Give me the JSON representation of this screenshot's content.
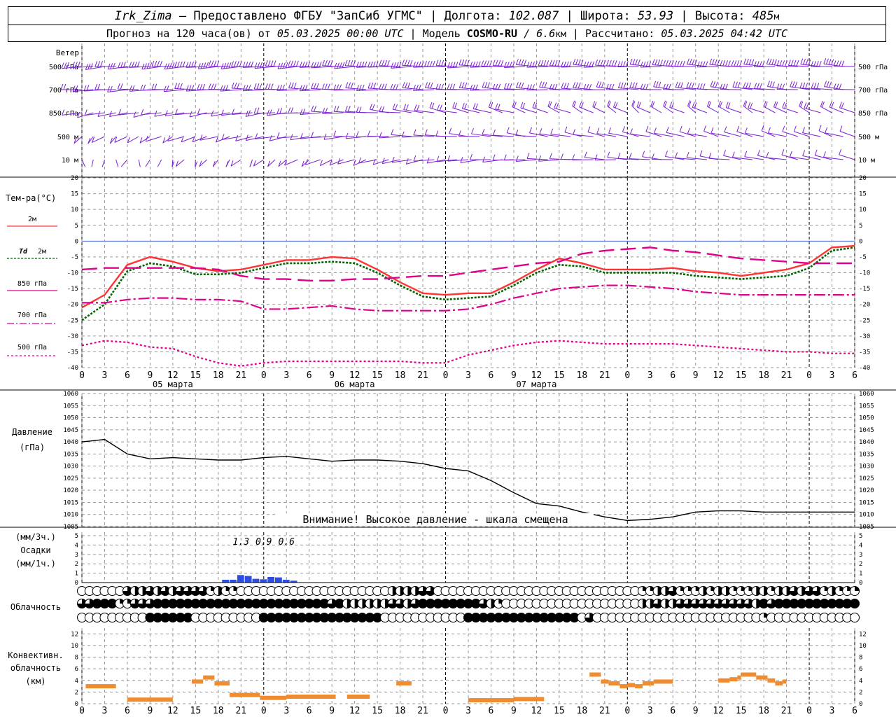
{
  "header": {
    "station": "Irk_Zima",
    "dash": " – ",
    "provided": "Предоставлено ФГБУ \"ЗапСиб УГМС\" | Долгота: ",
    "lon": "102.087",
    "lat_label": " | Широта: ",
    "lat": "53.93",
    "alt_label": " | Высота: ",
    "alt": "485",
    "alt_unit": "м",
    "fc_label": "Прогноз на 120 часа(ов) от ",
    "fc_start": "05.03.2025 00:00 UTC",
    "model_label": " | Модель ",
    "model": "COSMO-RU",
    "model_res": " / 6.6",
    "model_res_unit": "км",
    "calc_label": " | Рассчитано: ",
    "calc_time": "05.03.2025 04:42 UTC"
  },
  "colors": {
    "t2m": "#ff3333",
    "td2m": "#006400",
    "t850": "#e0008c",
    "t700": "#e0008c",
    "t500": "#e0008c",
    "pressure": "#000000",
    "precip": "#2b4de0",
    "conv": "#f08c30",
    "barb": "#7a1fd0",
    "zero_line": "#3a5fd8",
    "grid": "#aaaaaa"
  },
  "x_axis": {
    "hour_labels": [
      "0",
      "3",
      "6",
      "9",
      "12",
      "15",
      "18",
      "21",
      "0",
      "3",
      "6",
      "9",
      "12",
      "15",
      "18",
      "21",
      "0",
      "3",
      "6",
      "9",
      "12",
      "15",
      "18",
      "21",
      "0",
      "3",
      "6",
      "9",
      "12",
      "15",
      "18",
      "21",
      "0",
      "3",
      "6"
    ],
    "day_labels": [
      "05 марта",
      "06 марта",
      "07 марта"
    ]
  },
  "wind": {
    "title": "Ветер",
    "levels": [
      "500 гПа",
      "700 гПа",
      "850 гПа",
      "500 м",
      "10 м"
    ]
  },
  "temp_panel": {
    "title": "Тем-ра(°С)",
    "y_ticks": [
      "20",
      "15",
      "10",
      "5",
      "0",
      "-5",
      "-10",
      "-15",
      "-20",
      "-25",
      "-30",
      "-35",
      "-40"
    ],
    "legend": {
      "t2m": "2м",
      "td_a": "Td",
      "td_b": "2м",
      "t850": "850 гПа",
      "t700": "700 гПа",
      "t500": "500 гПа"
    }
  },
  "pressure_panel": {
    "title": "Давление",
    "unit": "(гПа)",
    "y_ticks": [
      "1060",
      "1055",
      "1050",
      "1045",
      "1040",
      "1035",
      "1030",
      "1025",
      "1020",
      "1015",
      "1010",
      "1005"
    ],
    "warning": "Внимание! Высокое давление - шкала смещена"
  },
  "precip_panel": {
    "unit3": "(мм/3ч.)",
    "title": "Осадки",
    "unit1": "(мм/1ч.)",
    "y_ticks": [
      "5",
      "4",
      "3",
      "2",
      "1",
      "0"
    ],
    "totals": [
      "1.3",
      "0.9",
      "0.6"
    ]
  },
  "cloud_panel": {
    "title": "Облачность"
  },
  "conv_panel": {
    "title1": "Конвективн.",
    "title2": "облачность",
    "unit": "(км)",
    "y_ticks": [
      "12",
      "10",
      "8",
      "6",
      "4",
      "2",
      "0"
    ]
  },
  "chart_data": [
    {
      "type": "line",
      "title": "Тем-ра(°С)",
      "x_unit": "hours since 05.03.2025 00:00 UTC",
      "ylim": [
        -40,
        20
      ],
      "x": [
        0,
        3,
        6,
        9,
        12,
        15,
        18,
        21,
        24,
        27,
        30,
        33,
        36,
        39,
        42,
        45,
        48,
        51,
        54,
        57,
        60,
        63,
        66,
        69,
        72,
        75,
        78,
        81,
        84,
        87,
        90,
        93,
        96,
        99,
        102
      ],
      "series": [
        {
          "name": "2м",
          "values": [
            -21,
            -17,
            -7.5,
            -5,
            -6.5,
            -8.5,
            -9.5,
            -9,
            -7.5,
            -6,
            -6,
            -5,
            -5.5,
            -9,
            -13,
            -16.5,
            -17,
            -16.5,
            -16.5,
            -13,
            -9,
            -5.5,
            -7,
            -9,
            -9,
            -9,
            -8.5,
            -9.5,
            -10,
            -11,
            -10,
            -9,
            -7,
            -2,
            -1.5
          ]
        },
        {
          "name": "Td 2м",
          "values": [
            -25,
            -20,
            -9.5,
            -7,
            -8,
            -10.5,
            -10.5,
            -10,
            -8.5,
            -7,
            -7,
            -6.5,
            -7,
            -10,
            -14,
            -17.5,
            -18.5,
            -18,
            -17.5,
            -14,
            -10,
            -7.5,
            -8,
            -10,
            -10,
            -10,
            -10,
            -11,
            -11.5,
            -12,
            -11.5,
            -11,
            -8.5,
            -3,
            -2
          ]
        },
        {
          "name": "850 гПа",
          "values": [
            -9,
            -8.5,
            -8.5,
            -8.5,
            -8.5,
            -8.5,
            -9,
            -11,
            -12,
            -12,
            -12.5,
            -12.5,
            -12,
            -12,
            -11.5,
            -11,
            -11,
            -10,
            -9,
            -8,
            -7,
            -6.5,
            -4,
            -3,
            -2.5,
            -2,
            -3,
            -3.5,
            -4.5,
            -5.5,
            -6,
            -6.5,
            -7,
            -7,
            -7
          ]
        },
        {
          "name": "700 гПа",
          "values": [
            -19.5,
            -19.5,
            -18.5,
            -18,
            -18,
            -18.5,
            -18.5,
            -19,
            -21.5,
            -21.5,
            -21,
            -20.5,
            -21.5,
            -22,
            -22,
            -22,
            -22,
            -21.5,
            -20,
            -18,
            -16.5,
            -15,
            -14.5,
            -14,
            -14,
            -14.5,
            -15,
            -16,
            -16.5,
            -17,
            -17,
            -17,
            -17,
            -17,
            -17
          ]
        },
        {
          "name": "500 гПа",
          "values": [
            -33,
            -31.5,
            -32,
            -33.5,
            -34,
            -36.5,
            -38.5,
            -39.5,
            -38.5,
            -38,
            -38,
            -38,
            -38,
            -38,
            -38,
            -38.5,
            -38.5,
            -36,
            -34.5,
            -33,
            -32,
            -31.5,
            -32,
            -32.5,
            -32.5,
            -32.5,
            -32.5,
            -33,
            -33.5,
            -34,
            -34.5,
            -35,
            -35,
            -35.5,
            -35.5
          ]
        }
      ]
    },
    {
      "type": "line",
      "title": "Давление",
      "x_unit": "hours since 05.03.2025 00:00 UTC",
      "ylim": [
        1005,
        1060
      ],
      "x": [
        0,
        3,
        6,
        9,
        12,
        15,
        18,
        21,
        24,
        27,
        30,
        33,
        36,
        39,
        42,
        45,
        48,
        51,
        54,
        57,
        60,
        63,
        66,
        69,
        72,
        75,
        78,
        81,
        84,
        87,
        90,
        93,
        96,
        99,
        102
      ],
      "series": [
        {
          "name": "Давление",
          "values": [
            1040,
            1041,
            1035,
            1033,
            1033.5,
            1033,
            1032.5,
            1032.5,
            1033.5,
            1034,
            1033,
            1032,
            1032.5,
            1032.5,
            1032,
            1031,
            1029,
            1028,
            1024,
            1019,
            1014.5,
            1013.5,
            1011,
            1009,
            1007.5,
            1008,
            1009,
            1011,
            1011.5,
            1011.5,
            1011,
            1011,
            1011,
            1011,
            1011
          ]
        }
      ]
    },
    {
      "type": "bar",
      "title": "Осадки",
      "x_unit": "hours since 05.03.2025 00:00 UTC",
      "ylim": [
        0,
        5
      ],
      "x": [
        19,
        20,
        21,
        22,
        23,
        24,
        25,
        26,
        27,
        28,
        29,
        30,
        31,
        32,
        33,
        34,
        35,
        36,
        37,
        38,
        39,
        40,
        41,
        42,
        43,
        44,
        45,
        46,
        47,
        48,
        49,
        50,
        51,
        52,
        53,
        54,
        55,
        56,
        57,
        58,
        59,
        60,
        61,
        62,
        63,
        64,
        65,
        66,
        67,
        68,
        69,
        70,
        71,
        72,
        73,
        74,
        75,
        76,
        77,
        78,
        79,
        80,
        81,
        82,
        83,
        84,
        85,
        86,
        87,
        88,
        89,
        90
      ],
      "values": [
        0.3,
        0.3,
        0.8,
        0.7,
        0.4,
        0.35,
        0.6,
        0.55,
        0.3,
        0.2,
        0,
        0,
        0,
        0,
        0,
        0,
        0,
        0,
        0,
        0,
        0,
        0,
        0,
        0,
        0,
        0,
        0,
        0,
        0,
        0,
        0,
        0,
        0,
        0,
        0,
        0,
        0,
        0,
        0,
        0,
        0,
        0,
        0,
        0,
        0,
        0,
        0,
        0,
        0,
        0,
        0,
        0.05,
        0,
        0,
        0,
        0,
        0,
        0,
        0,
        0,
        0,
        0,
        0,
        0,
        0,
        0,
        0,
        0,
        0,
        0,
        0,
        0
      ],
      "totals": [
        1.3,
        0.9,
        0.6
      ]
    },
    {
      "type": "table",
      "title": "Облачность",
      "x_unit": "hours since 05.03.2025 00:00 UTC",
      "x": [
        0,
        1,
        2,
        3,
        4,
        5,
        6,
        7,
        8,
        9,
        10,
        11,
        12,
        13,
        14,
        15,
        16,
        17,
        18,
        19,
        20,
        21,
        22,
        23,
        24,
        25,
        26,
        27,
        28,
        29,
        30,
        31,
        32,
        33,
        34,
        35,
        36,
        37,
        38,
        39,
        40,
        41,
        42,
        43,
        44,
        45,
        46,
        47,
        48,
        49,
        50,
        51,
        52,
        53,
        54,
        55,
        56,
        57,
        58,
        59,
        60,
        61,
        62,
        63,
        64,
        65,
        66,
        67,
        68,
        69,
        70,
        71,
        72,
        73,
        74,
        75,
        76,
        77,
        78,
        79,
        80,
        81,
        82,
        83,
        84,
        85,
        86,
        87,
        88,
        89,
        90,
        91,
        92,
        93,
        94,
        95,
        96,
        97,
        98,
        99,
        100,
        101,
        102
      ],
      "rows": [
        {
          "name": "upper",
          "values": [
            0,
            0,
            0,
            0,
            0,
            0,
            0.75,
            0.5,
            0.5,
            0.75,
            0.5,
            0.75,
            0.5,
            0.75,
            0.75,
            0.75,
            0.75,
            0.25,
            0.5,
            0.25,
            0.25,
            0,
            0,
            0,
            0,
            0,
            0,
            0,
            0,
            0,
            0,
            0,
            0,
            0,
            0,
            0,
            0,
            0,
            0,
            0,
            0,
            0.5,
            0.5,
            0.5,
            0.5,
            0.75,
            0.75,
            0,
            0,
            0,
            0,
            0,
            0,
            0,
            0,
            0,
            0,
            0,
            0,
            0,
            0,
            0,
            0,
            0,
            0,
            0,
            0,
            0,
            0,
            0,
            0,
            0,
            0,
            0,
            0.25,
            0.25,
            0.5,
            0.5,
            0.75,
            0.25,
            0.25,
            0.25,
            0.5,
            0.25,
            0.5,
            0.5,
            0.25,
            0.25,
            0.25,
            0.5,
            0.5,
            0.25,
            0.5,
            0.5,
            0.75,
            0.5,
            0.75,
            0.75,
            0.25,
            0.5,
            0.25,
            0.25,
            0.25
          ]
        },
        {
          "name": "middle",
          "values": [
            0.75,
            0.75,
            1,
            1,
            1,
            0.25,
            0.25,
            0.75,
            0.75,
            0.75,
            1,
            1,
            1,
            1,
            1,
            1,
            1,
            1,
            1,
            1,
            1,
            1,
            1,
            1,
            1,
            1,
            1,
            1,
            1,
            1,
            1,
            1,
            1,
            0.75,
            1,
            0.5,
            0.5,
            0.5,
            0.5,
            0.5,
            0.5,
            0.75,
            0.75,
            0.5,
            0.75,
            1,
            1,
            1,
            1,
            1,
            1,
            1,
            1,
            0.75,
            0.5,
            0.25,
            0,
            0,
            0,
            0,
            0,
            0,
            0,
            0,
            0,
            0,
            0,
            0,
            0,
            0,
            0,
            0,
            0,
            0,
            0.5,
            0.5,
            0.75,
            0.5,
            0.5,
            0.75,
            0.75,
            0.75,
            0.75,
            0.75,
            0.75,
            0.75,
            0.75,
            0.75,
            0.75,
            0.5,
            1,
            0.75,
            1,
            1,
            1,
            1,
            1,
            1,
            1,
            1,
            1,
            1,
            1
          ]
        },
        {
          "name": "lower",
          "values": [
            0,
            0,
            0,
            0,
            0,
            0,
            0,
            0,
            0,
            1,
            1,
            1,
            1,
            1,
            1,
            0,
            0,
            0,
            0,
            0,
            0,
            0,
            0,
            0,
            1,
            1,
            1,
            1,
            1,
            1,
            1,
            1,
            1,
            1,
            1,
            1,
            1,
            1,
            1,
            1,
            0,
            0,
            0,
            0,
            0,
            0,
            0,
            0,
            0,
            0,
            0,
            1,
            1,
            1,
            1,
            1,
            1,
            1,
            1,
            1,
            1,
            1,
            1,
            1,
            1,
            1,
            0,
            0.75,
            0,
            0,
            0,
            0,
            0,
            0,
            0,
            0,
            0,
            0,
            0,
            0,
            0,
            0,
            0,
            0,
            0,
            0,
            0,
            0,
            0,
            0,
            0.25,
            0,
            0,
            0,
            0,
            0,
            0,
            0,
            0,
            0,
            0,
            0,
            0
          ]
        }
      ]
    },
    {
      "type": "bar",
      "title": "Конвективн. облачность (км)",
      "x_unit": "hours since 05.03.2025 00:00 UTC",
      "ylim": [
        0,
        13
      ],
      "segments": [
        [
          0.5,
          4.5,
          3.0
        ],
        [
          6,
          12,
          0.7
        ],
        [
          14.5,
          16,
          3.8
        ],
        [
          16,
          17.5,
          4.5
        ],
        [
          17.5,
          19.5,
          3.5
        ],
        [
          19.5,
          23.5,
          1.5
        ],
        [
          23.5,
          27,
          1.0
        ],
        [
          27,
          28,
          1.2
        ],
        [
          28,
          33.5,
          1.2
        ],
        [
          35,
          38,
          1.2
        ],
        [
          41.5,
          43.5,
          3.5
        ],
        [
          51,
          57,
          0.6
        ],
        [
          57,
          61,
          0.8
        ],
        [
          67,
          68.5,
          5.0
        ],
        [
          68.5,
          69.5,
          3.8
        ],
        [
          69.5,
          71,
          3.5
        ],
        [
          71,
          72,
          3.0
        ],
        [
          72,
          73,
          3.2
        ],
        [
          73,
          74,
          3.0
        ],
        [
          74,
          75.5,
          3.5
        ],
        [
          75.5,
          78,
          3.8
        ],
        [
          84,
          85.5,
          4.0
        ],
        [
          85.5,
          86.5,
          4.2
        ],
        [
          86.5,
          87,
          4.5
        ],
        [
          87,
          89,
          5.0
        ],
        [
          89,
          90.5,
          4.5
        ],
        [
          90.5,
          91.5,
          4.0
        ],
        [
          91.5,
          92.5,
          3.5
        ],
        [
          92.5,
          93,
          3.8
        ]
      ]
    }
  ]
}
